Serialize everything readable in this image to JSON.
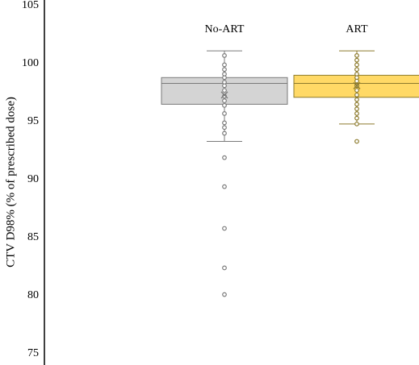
{
  "chart_data": {
    "type": "box",
    "y_label": "CTV D98% (% of prescribed dose)",
    "ylim": [
      75,
      105
    ],
    "yticks": [
      75,
      80,
      85,
      90,
      95,
      100,
      105
    ],
    "series": [
      {
        "name": "No-ART",
        "color": "#d4d4d4",
        "edge": "#7a7a7a",
        "whisker_low": 93.3,
        "q1": 96.5,
        "median": 98.3,
        "q3": 98.8,
        "whisker_high": 101.1,
        "mean": 97.3,
        "points": [
          100.7,
          99.9,
          99.5,
          99.1,
          98.8,
          98.4,
          98.1,
          97.7,
          97.2,
          96.8,
          96.4,
          95.7,
          94.9,
          94.5,
          94.0,
          91.9,
          89.4,
          85.8,
          82.4,
          80.1
        ]
      },
      {
        "name": "ART",
        "color": "#ffd966",
        "edge": "#8c7a2c",
        "whisker_low": 94.8,
        "q1": 97.1,
        "median": 98.3,
        "q3": 99.0,
        "whisker_high": 101.1,
        "mean": 98.1,
        "points": [
          100.7,
          100.3,
          99.9,
          99.5,
          99.1,
          98.8,
          98.5,
          98.1,
          97.7,
          97.3,
          96.9,
          96.5,
          96.1,
          95.7,
          95.3,
          94.8,
          93.3
        ]
      }
    ]
  }
}
